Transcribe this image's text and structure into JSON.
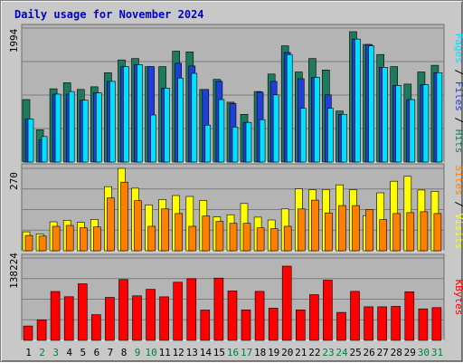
{
  "title": "Daily usage for November 2024",
  "colors": {
    "background": "#c8c8c8",
    "plot_bg": "#b4b4b4",
    "title": "#0000cc",
    "pages": "#00e0ff",
    "files": "#1f3fd8",
    "hits": "#1e7a5e",
    "sites": "#ff8000",
    "visits": "#ffff00",
    "kbytes": "#ff0000",
    "weekend_day": "#00803c",
    "weekday_day": "#000000"
  },
  "chart_data": {
    "type": "bar",
    "title": "Daily usage for November 2024",
    "categories": [
      "1",
      "2",
      "3",
      "4",
      "5",
      "6",
      "7",
      "8",
      "9",
      "10",
      "11",
      "12",
      "13",
      "14",
      "15",
      "16",
      "17",
      "18",
      "19",
      "20",
      "21",
      "22",
      "23",
      "24",
      "25",
      "26",
      "27",
      "28",
      "29",
      "30",
      "31"
    ],
    "weekend_days": [
      "2",
      "3",
      "9",
      "10",
      "16",
      "17",
      "23",
      "24",
      "30",
      "31"
    ],
    "panels": [
      {
        "name": "hits_files_pages",
        "ymax_label": "1994",
        "ymax": 1994,
        "axis_label_parts": [
          {
            "text": "Pages",
            "color": "#00e0ff"
          },
          {
            "text": "Files",
            "color": "#1f3fd8"
          },
          {
            "text": "Hits",
            "color": "#1e7a5e"
          }
        ],
        "series": [
          {
            "name": "Hits",
            "values": [
              930,
              480,
              1090,
              1180,
              1080,
              1120,
              1330,
              1520,
              1540,
              1420,
              1420,
              1650,
              1640,
              1080,
              1230,
              890,
              710,
              1050,
              1310,
              1730,
              1340,
              1540,
              1370,
              760,
              1940,
              1750,
              1600,
              1420,
              1160,
              1340,
              1440
            ]
          },
          {
            "name": "Files",
            "values": [
              640,
              330,
              1010,
              1010,
              920,
              1030,
              1200,
              1420,
              1450,
              1420,
              1100,
              1470,
              1430,
              1080,
              1200,
              870,
              590,
              1040,
              1200,
              1630,
              1240,
              1260,
              1000,
              710,
              1830,
              1750,
              1410,
              1140,
              930,
              1150,
              1330
            ]
          },
          {
            "name": "Pages",
            "values": [
              640,
              380,
              1010,
              1050,
              920,
              1030,
              1200,
              1420,
              1450,
              700,
              1100,
              1250,
              1320,
              550,
              930,
              520,
              590,
              630,
              1000,
              1600,
              800,
              1260,
              800,
              710,
              1830,
              1730,
              1410,
              1140,
              930,
              1150,
              1330
            ]
          }
        ]
      },
      {
        "name": "visits_sites",
        "ymax_label": "270",
        "ymax": 270,
        "axis_label_parts": [
          {
            "text": "Sites",
            "color": "#ff8000"
          },
          {
            "text": "Visits",
            "color": "#ffff00"
          }
        ],
        "series": [
          {
            "name": "Visits",
            "values": [
              62,
              55,
              95,
              100,
              93,
              103,
              210,
              270,
              205,
              150,
              168,
              181,
              178,
              165,
              111,
              118,
              155,
              110,
              101,
              137,
              203,
              200,
              201,
              216,
              200,
              115,
              190,
              228,
              244,
              199,
              195
            ]
          },
          {
            "name": "Sites",
            "values": [
              50,
              48,
              80,
              83,
              75,
              78,
              173,
              225,
              164,
              80,
              137,
              122,
              80,
              114,
              96,
              90,
              90,
              75,
              72,
              80,
              137,
              166,
              124,
              148,
              148,
              135,
              102,
              122,
              125,
              128,
              122
            ]
          }
        ]
      },
      {
        "name": "kbytes",
        "ymax_label": "138224",
        "ymax": 138224,
        "axis_label_parts": [
          {
            "text": "KBytes",
            "color": "#ff0000"
          }
        ],
        "series": [
          {
            "name": "KBytes",
            "values": [
              24200,
              34500,
              82000,
              73200,
              95000,
              43200,
              72200,
              102000,
              74800,
              85700,
              73100,
              97500,
              103500,
              50900,
              104500,
              82900,
              51200,
              82100,
              54100,
              124500,
              51200,
              76700,
              101000,
              46900,
              82100,
              56400,
              56400,
              57100,
              81500,
              52900,
              55000
            ]
          }
        ]
      }
    ]
  }
}
